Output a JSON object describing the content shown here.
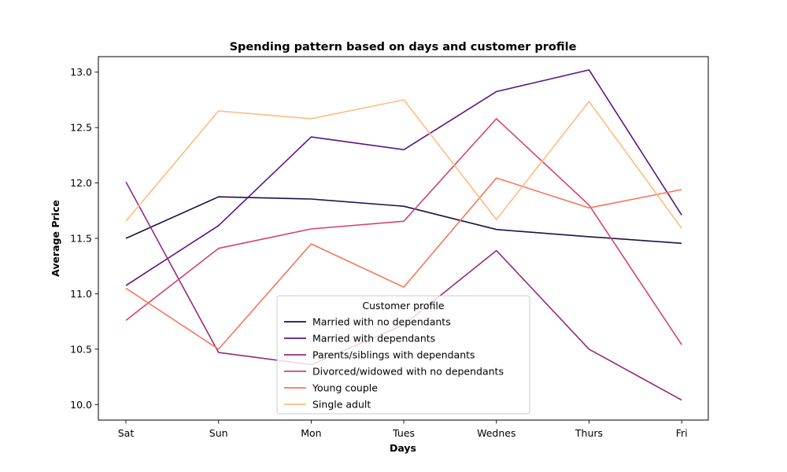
{
  "chart_data": {
    "type": "line",
    "title": "Spending pattern based on days and customer profile",
    "xlabel": "Days",
    "ylabel": "Average Price",
    "categories": [
      "Sat",
      "Sun",
      "Mon",
      "Tues",
      "Wednes",
      "Thurs",
      "Fri"
    ],
    "ylim": [
      9.86,
      13.14
    ],
    "yticks": [
      10.0,
      10.5,
      11.0,
      11.5,
      12.0,
      12.5,
      13.0
    ],
    "ytick_labels": [
      "10.0",
      "10.5",
      "11.0",
      "11.5",
      "12.0",
      "12.5",
      "13.0"
    ],
    "grid": false,
    "legend": {
      "title": "Customer profile",
      "placement": "lower-center"
    },
    "series": [
      {
        "name": "Married with no dependants",
        "color": "#1d1147",
        "values": [
          11.5,
          11.875,
          11.855,
          11.79,
          11.58,
          11.515,
          11.455
        ]
      },
      {
        "name": "Married with dependants",
        "color": "#5a167e",
        "values": [
          11.075,
          11.615,
          12.415,
          12.3,
          12.825,
          13.02,
          11.71
        ]
      },
      {
        "name": "Parents/siblings with dependants",
        "color": "#932b80",
        "values": [
          12.01,
          10.47,
          10.36,
          10.72,
          11.39,
          10.5,
          10.04
        ]
      },
      {
        "name": "Divorced/widowed with no dependants",
        "color": "#d3436e",
        "values": [
          10.76,
          11.41,
          11.585,
          11.655,
          12.58,
          11.8,
          10.54
        ]
      },
      {
        "name": "Young couple",
        "color": "#f8765c",
        "values": [
          11.05,
          10.5,
          11.45,
          11.06,
          12.045,
          11.775,
          11.94
        ]
      },
      {
        "name": "Single adult",
        "color": "#febb81",
        "values": [
          11.655,
          12.65,
          12.58,
          12.75,
          11.67,
          12.735,
          11.59
        ]
      }
    ]
  }
}
